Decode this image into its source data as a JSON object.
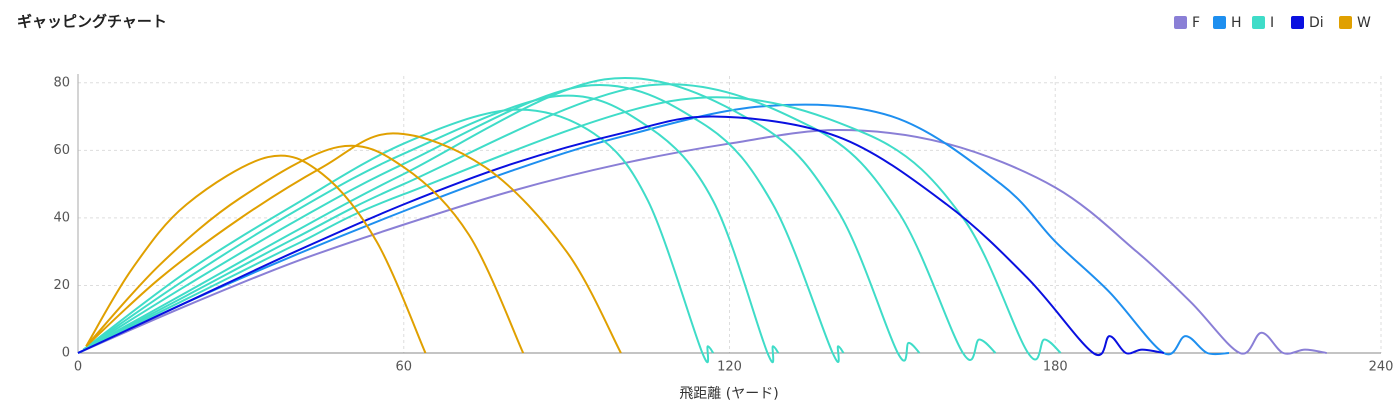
{
  "chart_data": {
    "type": "line",
    "title": "ギャッピングチャート",
    "x_label": "飛距離 (ヤード)",
    "xlim": [
      0,
      240
    ],
    "ylim": [
      0,
      82
    ],
    "xticks": [
      0,
      60,
      120,
      180,
      240
    ],
    "yticks": [
      0,
      20,
      40,
      60,
      80
    ],
    "grid": true,
    "legend": "top-right",
    "series": [
      {
        "name": "F",
        "color": "#8a7fd6",
        "curves": [
          {
            "x": [
              0,
              20,
              40,
              60,
              80,
              100,
              120,
              140,
              160,
              180,
              195,
              205,
              214,
              218,
              222,
              226,
              230
            ],
            "values": [
              0,
              14,
              27,
              38,
              48,
              56,
              62,
              66,
              62,
              49,
              30,
              15,
              0,
              6,
              0,
              1,
              0
            ]
          }
        ]
      },
      {
        "name": "H",
        "color": "#1e8fef",
        "curves": [
          {
            "x": [
              0,
              20,
              40,
              60,
              80,
              100,
              126,
              150,
              170,
              180,
              190,
              200,
              204,
              208,
              212
            ],
            "values": [
              0,
              15,
              29,
              42,
              54,
              64,
              73,
              70,
              50,
              33,
              18,
              0,
              5,
              0,
              0
            ]
          }
        ]
      },
      {
        "name": "I",
        "color": "#3fdcc8",
        "curves": [
          {
            "x": [
              1,
              20,
              40,
              60,
              80,
              95,
              105,
              115,
              116,
              117
            ],
            "values": [
              1,
              24,
              44,
              62,
              72,
              65,
              45,
              0,
              2,
              0
            ]
          },
          {
            "x": [
              1,
              20,
              40,
              60,
              88,
              105,
              117,
              127,
              128,
              129
            ],
            "values": [
              1,
              22,
              42,
              59,
              76,
              67,
              45,
              0,
              2,
              0
            ]
          },
          {
            "x": [
              1,
              20,
              40,
              60,
              93,
              115,
              128,
              139,
              140,
              141
            ],
            "values": [
              1,
              20,
              39,
              56,
              79,
              68,
              44,
              0,
              2,
              0
            ]
          },
          {
            "x": [
              1,
              20,
              40,
              60,
              97,
              125,
              140,
              151,
              153,
              155
            ],
            "values": [
              1,
              18,
              36,
              53,
              81,
              68,
              42,
              0,
              3,
              0
            ]
          },
          {
            "x": [
              1,
              20,
              40,
              60,
              104,
              135,
              151,
              163,
              166,
              169
            ],
            "values": [
              1,
              17,
              34,
              50,
              79,
              67,
              42,
              0,
              4,
              0
            ]
          },
          {
            "x": [
              1,
              20,
              40,
              60,
              111,
              145,
              163,
              175,
              178,
              181
            ],
            "values": [
              1,
              16,
              32,
              47,
              75,
              65,
              40,
              0,
              4,
              0
            ]
          }
        ]
      },
      {
        "name": "Di",
        "color": "#0a10e0",
        "curves": [
          {
            "x": [
              0,
              20,
              40,
              60,
              80,
              100,
              117,
              140,
              160,
              175,
              187,
              190,
              193,
              196,
              200
            ],
            "values": [
              0,
              15,
              30,
              44,
              56,
              65,
              70,
              64,
              44,
              22,
              0,
              5,
              0,
              1,
              0
            ]
          }
        ]
      },
      {
        "name": "W",
        "color": "#e0a000",
        "curves": [
          {
            "x": [
              1.5,
              10,
              20,
              35,
              45,
              55,
              64
            ],
            "values": [
              2,
              25,
              44,
              58,
              53,
              33,
              0
            ]
          },
          {
            "x": [
              1.5,
              15,
              30,
              48,
              60,
              72,
              82
            ],
            "values": [
              2,
              26,
              46,
              61,
              55,
              35,
              0
            ]
          },
          {
            "x": [
              1.5,
              15,
              30,
              45,
              58,
              75,
              90,
              100
            ],
            "values": [
              2,
              22,
              40,
              55,
              65,
              55,
              30,
              0
            ]
          }
        ]
      }
    ]
  }
}
